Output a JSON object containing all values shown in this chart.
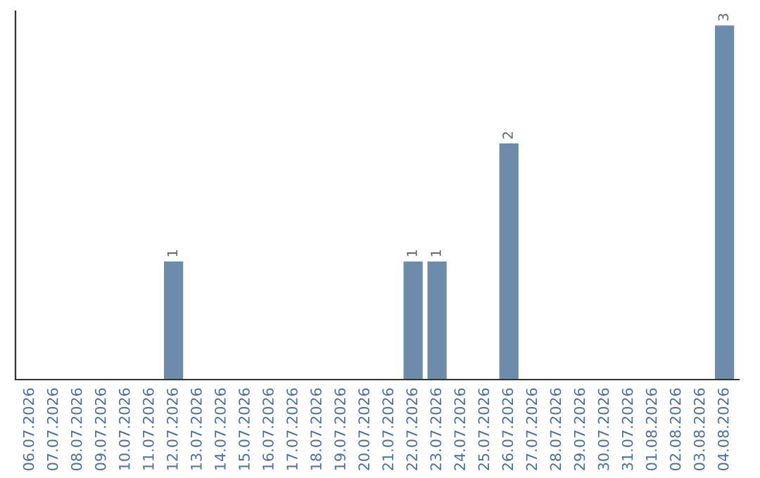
{
  "chart_data": {
    "type": "bar",
    "categories": [
      "06.07.2026",
      "07.07.2026",
      "08.07.2026",
      "09.07.2026",
      "10.07.2026",
      "11.07.2026",
      "12.07.2026",
      "13.07.2026",
      "14.07.2026",
      "15.07.2026",
      "16.07.2026",
      "17.07.2026",
      "18.07.2026",
      "19.07.2026",
      "20.07.2026",
      "21.07.2026",
      "22.07.2026",
      "23.07.2026",
      "24.07.2026",
      "25.07.2026",
      "26.07.2026",
      "27.07.2026",
      "28.07.2026",
      "29.07.2026",
      "30.07.2026",
      "31.07.2026",
      "01.08.2026",
      "02.08.2026",
      "03.08.2026",
      "04.08.2026"
    ],
    "values": [
      0,
      0,
      0,
      0,
      0,
      0,
      1,
      0,
      0,
      0,
      0,
      0,
      0,
      0,
      0,
      0,
      1,
      1,
      0,
      0,
      2,
      0,
      0,
      0,
      0,
      0,
      0,
      0,
      0,
      3
    ],
    "value_labels": [
      null,
      null,
      null,
      null,
      null,
      null,
      "1",
      null,
      null,
      null,
      null,
      null,
      null,
      null,
      null,
      null,
      "1",
      "1",
      null,
      null,
      "2",
      null,
      null,
      null,
      null,
      null,
      null,
      null,
      null,
      "3"
    ],
    "color": "#6d8cab",
    "grid": false,
    "tick_labels": "x"
  }
}
